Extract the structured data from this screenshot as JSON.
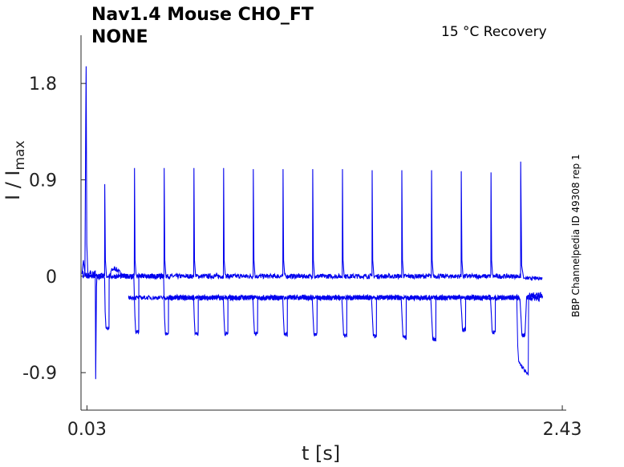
{
  "title_line1": "Nav1.4  Mouse  CHO_FT",
  "title_line2": "NONE",
  "annotation": "15 °C  Recovery",
  "side_label": "BBP Channelpedia ID 49308 rep 1",
  "chart_data": {
    "type": "line",
    "xlabel": "t [s]",
    "ylabel_main": "I / I",
    "ylabel_sub": "max",
    "x_ticks": [
      0.03,
      2.43
    ],
    "x_tick_labels": [
      "0.03",
      "2.43"
    ],
    "y_ticks": [
      -0.9,
      0,
      0.9,
      1.8
    ],
    "y_tick_labels": [
      "-0.9",
      "0",
      "0.9",
      "1.8"
    ],
    "xlim": [
      0.0,
      2.45
    ],
    "ylim": [
      -1.25,
      2.25
    ],
    "line_color": "#0000ee",
    "grid": false,
    "pulse_times": [
      0.12,
      0.27,
      0.42,
      0.57,
      0.72,
      0.87,
      1.02,
      1.17,
      1.32,
      1.47,
      1.62,
      1.77,
      1.92,
      2.07,
      2.22
    ],
    "pulse_peaks": [
      0.86,
      1.01,
      1.01,
      1.01,
      1.01,
      1.0,
      1.0,
      1.0,
      1.0,
      0.99,
      0.99,
      0.99,
      0.98,
      0.97,
      1.07
    ],
    "pulse_troughs": [
      -0.48,
      -0.52,
      -0.54,
      -0.54,
      -0.54,
      -0.54,
      -0.54,
      -0.54,
      -0.55,
      -0.56,
      -0.57,
      -0.59,
      -0.5,
      -0.52,
      -0.55
    ],
    "baseline_upper": 0.0,
    "baseline_lower": -0.2,
    "initial_spike_peak": 1.96,
    "initial_spike_trough": -0.96,
    "final_trough": -0.92
  }
}
